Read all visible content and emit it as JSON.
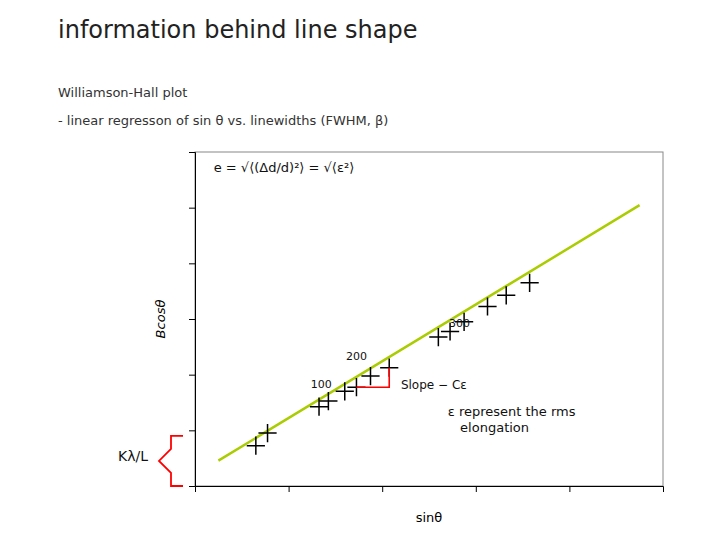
{
  "chart_data": {
    "type": "scatter",
    "title": "information behind line shape",
    "subtitle": [
      "Williamson-Hall plot",
      "- linear regresson of sin θ vs. linewidths (FWHM, β)"
    ],
    "x_label": "sinθ",
    "y_label": "Bcosθ",
    "xlim": [
      0,
      1
    ],
    "ylim": [
      0,
      1.2
    ],
    "xticks": [
      0.2,
      0.4,
      0.6,
      0.8
    ],
    "yticks": [
      0.2,
      0.4,
      0.6,
      0.8,
      1,
      1.2
    ],
    "tick_labels": false,
    "grid": false,
    "series": [
      {
        "type": "line",
        "color": "#aacc00",
        "x": [
          0.05,
          0.95
        ],
        "values": [
          0.091,
          1.009
        ]
      },
      {
        "type": "scatter",
        "marker": "plus",
        "color": "#000000",
        "x": [
          0.13,
          0.155,
          0.265,
          0.285,
          0.32,
          0.345,
          0.375,
          0.415,
          0.52,
          0.545,
          0.575,
          0.625,
          0.665,
          0.715
        ],
        "values": [
          0.145,
          0.19,
          0.285,
          0.305,
          0.34,
          0.355,
          0.395,
          0.425,
          0.535,
          0.555,
          0.59,
          0.645,
          0.685,
          0.73
        ]
      },
      {
        "type": "line",
        "color": "red",
        "x": [
          0.345,
          0.415,
          0.415
        ],
        "values": [
          0.355,
          0.355,
          0.425
        ]
      }
    ],
    "annotations": [
      {
        "text": "100",
        "x": 0.27,
        "y": 0.345
      },
      {
        "text": "200",
        "x": 0.345,
        "y": 0.445
      },
      {
        "text": "300",
        "x": 0.565,
        "y": 0.565
      },
      {
        "text": "Slope − Cε",
        "x": 0.44,
        "y": 0.365
      },
      {
        "text": "e = √⟨(Δd/d)²⟩ = √⟨ε²⟩"
      },
      {
        "text": "ε represent the rms\n   elongation"
      },
      {
        "text": "Kλ/L"
      }
    ]
  }
}
